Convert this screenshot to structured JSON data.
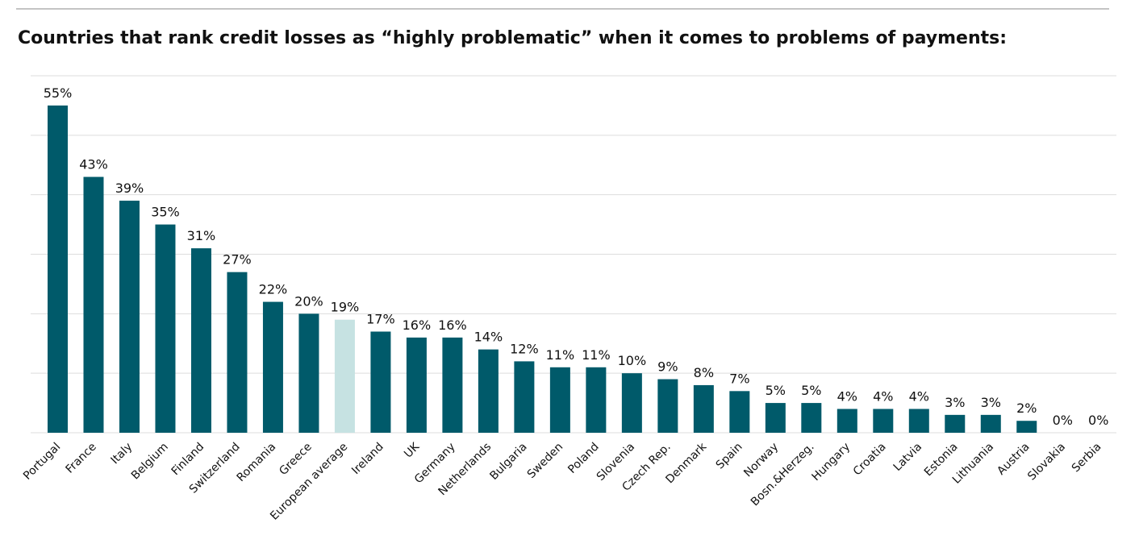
{
  "chart_data": {
    "type": "bar",
    "title": "Countries that rank credit losses as “highly problematic” when it comes to problems of payments:",
    "categories": [
      "Portugal",
      "France",
      "Italy",
      "Belgium",
      "Finland",
      "Switzerland",
      "Romania",
      "Greece",
      "European average",
      "Ireland",
      "UK",
      "Germany",
      "Netherlands",
      "Bulgaria",
      "Sweden",
      "Poland",
      "Slovenia",
      "Czech Rep.",
      "Denmark",
      "Spain",
      "Norway",
      "Bosn.&Herzeg.",
      "Hungary",
      "Croatia",
      "Latvia",
      "Estonia",
      "Lithuania",
      "Austria",
      "Slovakia",
      "Serbia"
    ],
    "values": [
      55,
      43,
      39,
      35,
      31,
      27,
      22,
      20,
      19,
      17,
      16,
      16,
      14,
      12,
      11,
      11,
      10,
      9,
      8,
      7,
      5,
      5,
      4,
      4,
      4,
      3,
      3,
      2,
      0,
      0
    ],
    "value_labels": [
      "55%",
      "43%",
      "39%",
      "35%",
      "31%",
      "27%",
      "22%",
      "20%",
      "19%",
      "17%",
      "16%",
      "16%",
      "14%",
      "12%",
      "11%",
      "11%",
      "10%",
      "9%",
      "8%",
      "7%",
      "5%",
      "5%",
      "4%",
      "4%",
      "4%",
      "3%",
      "3%",
      "2%",
      "0%",
      "0%"
    ],
    "colors": [
      "#005a6a",
      "#005a6a",
      "#005a6a",
      "#005a6a",
      "#005a6a",
      "#005a6a",
      "#005a6a",
      "#005a6a",
      "#c6e2e2",
      "#005a6a",
      "#005a6a",
      "#005a6a",
      "#005a6a",
      "#005a6a",
      "#005a6a",
      "#005a6a",
      "#005a6a",
      "#005a6a",
      "#005a6a",
      "#005a6a",
      "#005a6a",
      "#005a6a",
      "#005a6a",
      "#005a6a",
      "#005a6a",
      "#005a6a",
      "#005a6a",
      "#005a6a",
      "#005a6a",
      "#005a6a"
    ],
    "ylim": [
      0,
      60
    ],
    "yticks": [
      0,
      10,
      20,
      30,
      40,
      50,
      60
    ],
    "grid": true
  }
}
